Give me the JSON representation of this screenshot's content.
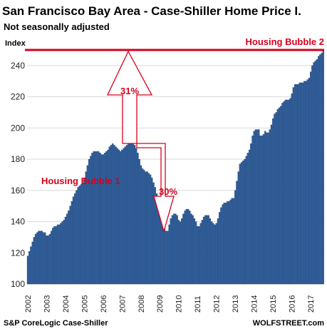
{
  "chart_data": {
    "type": "bar",
    "title": "San Francisco Bay Area - Case-Shiller Home Price I.",
    "subtitle": "Not seasonally adjusted",
    "ylabel": "Index",
    "ylim": [
      100,
      250
    ],
    "yticks": [
      100,
      120,
      140,
      160,
      180,
      200,
      220,
      240
    ],
    "x_tick_labels": [
      "2002",
      "2003",
      "2004",
      "2005",
      "2006",
      "2007",
      "2008",
      "2009",
      "2010",
      "2011",
      "2012",
      "2013",
      "2014",
      "2015",
      "2016",
      "2017"
    ],
    "x_start": "2002-01",
    "frequency": "monthly",
    "bar_color": "#2f5f9e",
    "values": [
      118,
      121,
      124,
      127,
      130,
      132,
      133,
      134,
      134,
      134,
      133,
      133,
      131,
      131,
      132,
      134,
      136,
      137,
      137,
      138,
      138,
      139,
      140,
      141,
      143,
      145,
      147,
      150,
      153,
      156,
      158,
      160,
      162,
      163,
      164,
      165,
      168,
      172,
      176,
      180,
      182,
      184,
      185,
      185,
      185,
      185,
      184,
      183,
      183,
      184,
      185,
      186,
      188,
      189,
      190,
      189,
      188,
      187,
      186,
      185,
      186,
      187,
      188,
      189,
      190,
      191,
      191,
      190,
      189,
      187,
      184,
      180,
      176,
      174,
      173,
      172,
      172,
      171,
      170,
      168,
      165,
      162,
      158,
      154,
      150,
      147,
      143,
      138,
      134,
      134,
      138,
      142,
      144,
      145,
      145,
      144,
      141,
      140,
      142,
      145,
      147,
      148,
      148,
      147,
      145,
      144,
      142,
      140,
      137,
      137,
      139,
      141,
      143,
      144,
      144,
      144,
      142,
      140,
      139,
      138,
      139,
      142,
      146,
      149,
      151,
      152,
      152,
      153,
      153,
      154,
      155,
      155,
      160,
      166,
      172,
      177,
      178,
      179,
      180,
      182,
      184,
      186,
      190,
      195,
      198,
      199,
      199,
      199,
      195,
      195,
      196,
      198,
      197,
      197,
      199,
      202,
      206,
      209,
      210,
      212,
      213,
      214,
      216,
      217,
      218,
      218,
      218,
      219,
      222,
      226,
      228,
      228,
      228,
      229,
      229,
      229,
      230,
      230,
      231,
      232,
      236,
      240,
      242,
      243,
      244,
      246,
      247,
      248,
      250
    ],
    "reference_line": {
      "value": 250,
      "label": "Housing Bubble 2",
      "color": "#d6001c"
    },
    "annotations": [
      {
        "text": "Housing Bubble 1",
        "color": "#d6001c"
      },
      {
        "text": "31%",
        "color": "#d6001c",
        "type": "up-arrow"
      },
      {
        "text": "30%",
        "color": "#d6001c",
        "type": "down-arrow"
      }
    ],
    "grid": true
  },
  "footer": {
    "source": "S&P CoreLogic Case-Shiller",
    "brand": "WOLFSTREET.com"
  }
}
